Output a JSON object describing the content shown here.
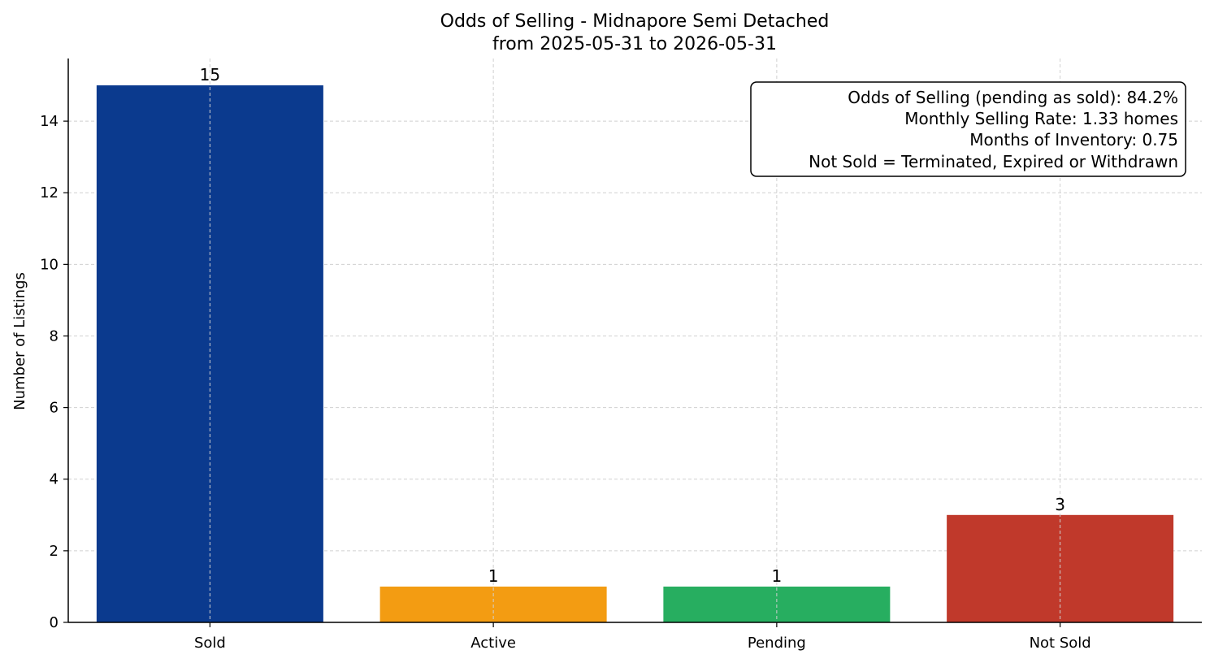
{
  "chart_data": {
    "type": "bar",
    "title": "Odds of Selling - Midnapore Semi Detached",
    "subtitle": "from 2025-05-31 to 2026-05-31",
    "xlabel": "",
    "ylabel": "Number of Listings",
    "categories": [
      "Sold",
      "Active",
      "Pending",
      "Not Sold"
    ],
    "values": [
      15,
      1,
      1,
      3
    ],
    "colors": [
      "#0b3a8e",
      "#f39c12",
      "#27ae60",
      "#c0392b"
    ],
    "ylim": [
      0,
      15.75
    ],
    "yticks": [
      0,
      2,
      4,
      6,
      8,
      10,
      12,
      14
    ],
    "grid": true,
    "legend": "none",
    "annotation_box": {
      "placement": "top-right",
      "lines": [
        "Odds of Selling (pending as sold): 84.2%",
        "Monthly Selling Rate: 1.33 homes",
        "Months of Inventory: 0.75",
        "Not Sold = Terminated, Expired or Withdrawn"
      ]
    }
  }
}
